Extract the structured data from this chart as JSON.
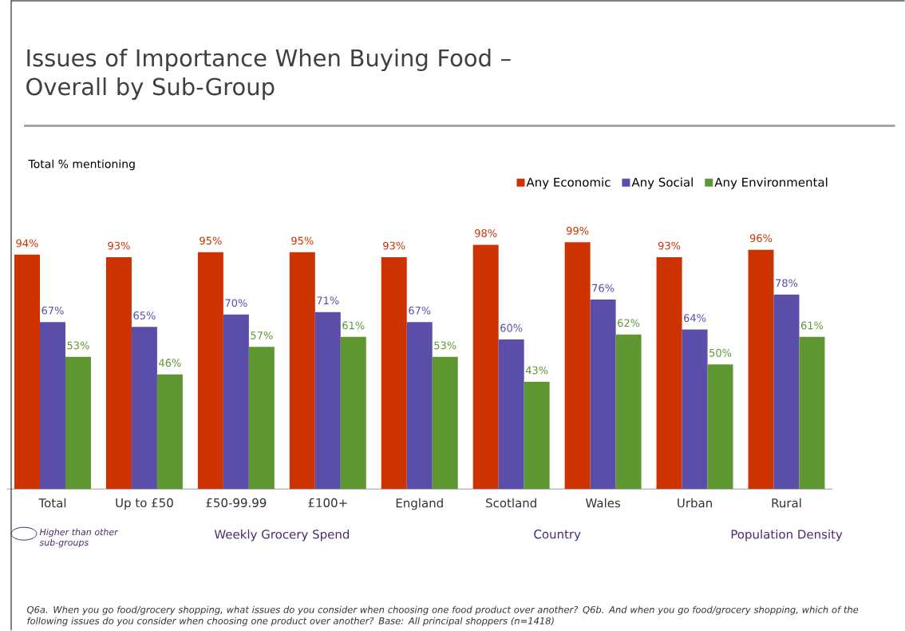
{
  "chart_data": {
    "type": "bar",
    "title": "Issues of Importance When Buying Food – Overall by Sub-Group",
    "categories": [
      "Total",
      "Up to £50",
      "£50-99.99",
      "£100+",
      "England",
      "Scotland",
      "Wales",
      "Urban",
      "Rural"
    ],
    "series": [
      {
        "name": "Any Economic",
        "color": "#cc3300",
        "values": [
          94,
          93,
          95,
          95,
          93,
          98,
          99,
          93,
          96
        ],
        "value_labels": [
          "94%",
          "93%",
          "95%",
          "95%",
          "93%",
          "98%",
          "99%",
          "93%",
          "96%"
        ]
      },
      {
        "name": "Any Social",
        "color": "#5b4ea8",
        "values": [
          67,
          65,
          70,
          71,
          67,
          60,
          76,
          64,
          78
        ],
        "value_labels": [
          "67%",
          "65%",
          "70%",
          "71%",
          "67%",
          "60%",
          "76%",
          "64%",
          "78%"
        ]
      },
      {
        "name": "Any Environmental",
        "color": "#5e9732",
        "values": [
          53,
          46,
          57,
          61,
          53,
          43,
          62,
          50,
          61
        ],
        "value_labels": [
          "53%",
          "46%",
          "57%",
          "61%",
          "53%",
          "43%",
          "62%",
          "50%",
          "61%"
        ]
      }
    ],
    "legend": "top right",
    "annotations": [
      "Total % mentioning",
      "Weekly Grocery Spend",
      "Country",
      "Population Density",
      "Higher than other sub-groups",
      "Q6a. When you go food/grocery shopping, what issues do you consider when choosing one food product over another?  Q6b. And when you go food/grocery shopping,  which of the following issues do you consider when choosing one product over another?    Base: All principal shoppers (n=1418)"
    ]
  }
}
